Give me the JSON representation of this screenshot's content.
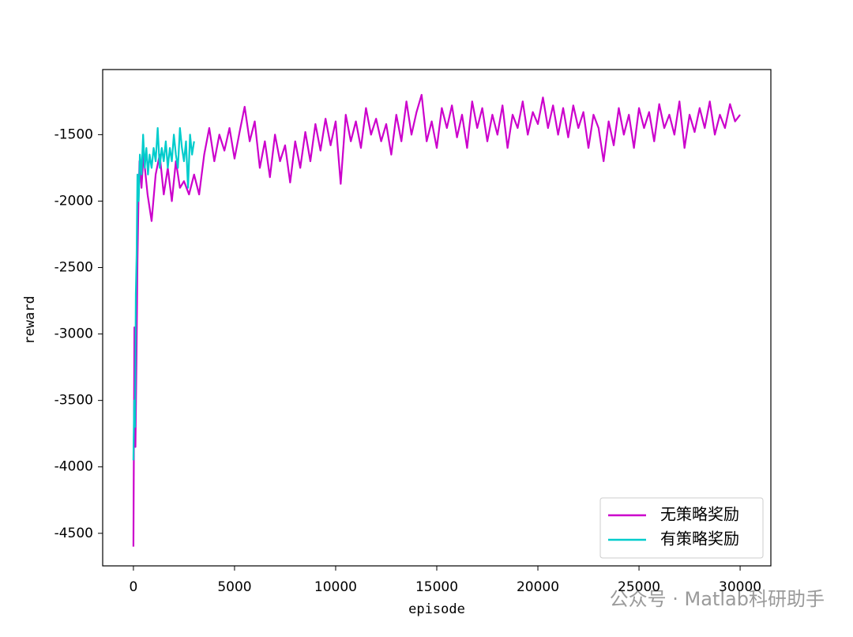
{
  "chart_data": {
    "type": "line",
    "xlabel": "episode",
    "ylabel": "reward",
    "xlim": [
      -1520,
      31520
    ],
    "ylim": [
      -4745,
      -1010
    ],
    "xticks": [
      0,
      5000,
      10000,
      15000,
      20000,
      25000,
      30000
    ],
    "yticks": [
      -4500,
      -4000,
      -3500,
      -3000,
      -2500,
      -2000,
      -1500
    ],
    "legend": "lower right",
    "watermark": "公众号 · Matlab科研助手",
    "series": [
      {
        "name": "无策略奖励",
        "color": "#cc00cc",
        "x": [
          0,
          50,
          100,
          150,
          200,
          250,
          300,
          400,
          500,
          700,
          900,
          1100,
          1300,
          1500,
          1700,
          1900,
          2100,
          2300,
          2500,
          2750,
          3000,
          3250,
          3500,
          3750,
          4000,
          4250,
          4500,
          4750,
          5000,
          5250,
          5500,
          5750,
          6000,
          6250,
          6500,
          6750,
          7000,
          7250,
          7500,
          7750,
          8000,
          8250,
          8500,
          8750,
          9000,
          9250,
          9500,
          9750,
          10000,
          10250,
          10500,
          10750,
          11000,
          11250,
          11500,
          11750,
          12000,
          12250,
          12500,
          12750,
          13000,
          13250,
          13500,
          13750,
          14000,
          14250,
          14500,
          14750,
          15000,
          15250,
          15500,
          15750,
          16000,
          16250,
          16500,
          16750,
          17000,
          17250,
          17500,
          17750,
          18000,
          18250,
          18500,
          18750,
          19000,
          19250,
          19500,
          19750,
          20000,
          20250,
          20500,
          20750,
          21000,
          21250,
          21500,
          21750,
          22000,
          22250,
          22500,
          22750,
          23000,
          23250,
          23500,
          23750,
          24000,
          24250,
          24500,
          24750,
          25000,
          25250,
          25500,
          25750,
          26000,
          26250,
          26500,
          26750,
          27000,
          27250,
          27500,
          27750,
          28000,
          28250,
          28500,
          28750,
          29000,
          29250,
          29500,
          29750,
          30000
        ],
        "values": [
          -4600,
          -2950,
          -3850,
          -3200,
          -2450,
          -2000,
          -1700,
          -1900,
          -1650,
          -1950,
          -2150,
          -1800,
          -1650,
          -1950,
          -1750,
          -2000,
          -1700,
          -1900,
          -1850,
          -1950,
          -1800,
          -1950,
          -1650,
          -1450,
          -1700,
          -1500,
          -1620,
          -1450,
          -1680,
          -1480,
          -1290,
          -1550,
          -1400,
          -1750,
          -1550,
          -1820,
          -1500,
          -1700,
          -1580,
          -1860,
          -1550,
          -1750,
          -1480,
          -1700,
          -1420,
          -1620,
          -1380,
          -1580,
          -1400,
          -1870,
          -1350,
          -1550,
          -1400,
          -1600,
          -1300,
          -1500,
          -1380,
          -1550,
          -1420,
          -1650,
          -1350,
          -1550,
          -1250,
          -1500,
          -1330,
          -1200,
          -1550,
          -1400,
          -1600,
          -1300,
          -1450,
          -1280,
          -1520,
          -1350,
          -1600,
          -1250,
          -1450,
          -1300,
          -1550,
          -1350,
          -1500,
          -1280,
          -1600,
          -1350,
          -1450,
          -1250,
          -1500,
          -1330,
          -1420,
          -1220,
          -1450,
          -1280,
          -1500,
          -1300,
          -1520,
          -1280,
          -1450,
          -1330,
          -1600,
          -1350,
          -1450,
          -1700,
          -1400,
          -1580,
          -1300,
          -1500,
          -1350,
          -1600,
          -1300,
          -1450,
          -1330,
          -1550,
          -1270,
          -1450,
          -1350,
          -1500,
          -1250,
          -1600,
          -1350,
          -1480,
          -1300,
          -1450,
          -1250,
          -1500,
          -1350,
          -1450,
          -1270,
          -1400,
          -1350
        ]
      },
      {
        "name": "有策略奖励",
        "color": "#00cccc",
        "x": [
          0,
          40,
          80,
          120,
          160,
          200,
          260,
          320,
          400,
          480,
          560,
          640,
          720,
          800,
          900,
          1000,
          1100,
          1200,
          1300,
          1400,
          1500,
          1600,
          1700,
          1800,
          1900,
          2000,
          2100,
          2200,
          2300,
          2400,
          2500,
          2600,
          2700,
          2800,
          2900,
          3000
        ],
        "values": [
          -3950,
          -3500,
          -3700,
          -2700,
          -2400,
          -1800,
          -2000,
          -1650,
          -1800,
          -1500,
          -1750,
          -1600,
          -1800,
          -1650,
          -1750,
          -1600,
          -1700,
          -1450,
          -1750,
          -1600,
          -1700,
          -1550,
          -1750,
          -1600,
          -1700,
          -1500,
          -1650,
          -1750,
          -1450,
          -1600,
          -1700,
          -1550,
          -1900,
          -1500,
          -1650,
          -1550
        ]
      }
    ]
  }
}
